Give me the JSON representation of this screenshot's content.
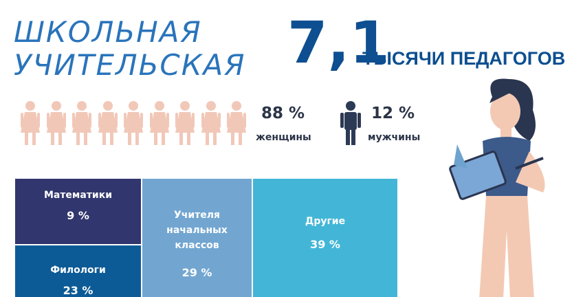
{
  "header": {
    "title_lines": [
      "ШКОЛЬНАЯ",
      "УЧИТЕЛЬСКАЯ"
    ],
    "total": "7,1",
    "total_caption": "ТЫСЯЧИ ПЕДАГОГОВ"
  },
  "gender": {
    "women": {
      "share": "88 %",
      "label": "женщины"
    },
    "men": {
      "share": "12 %",
      "label": "мужчины"
    }
  },
  "subjects": [
    {
      "label_lines": [
        "Математики"
      ],
      "share": "9 %"
    },
    {
      "label_lines": [
        "Филологи"
      ],
      "share": "23 %"
    },
    {
      "label_lines": [
        "Учителя",
        "начальных",
        "классов"
      ],
      "share": "29 %"
    },
    {
      "label_lines": [
        "Другие"
      ],
      "share": "39 %"
    }
  ]
}
